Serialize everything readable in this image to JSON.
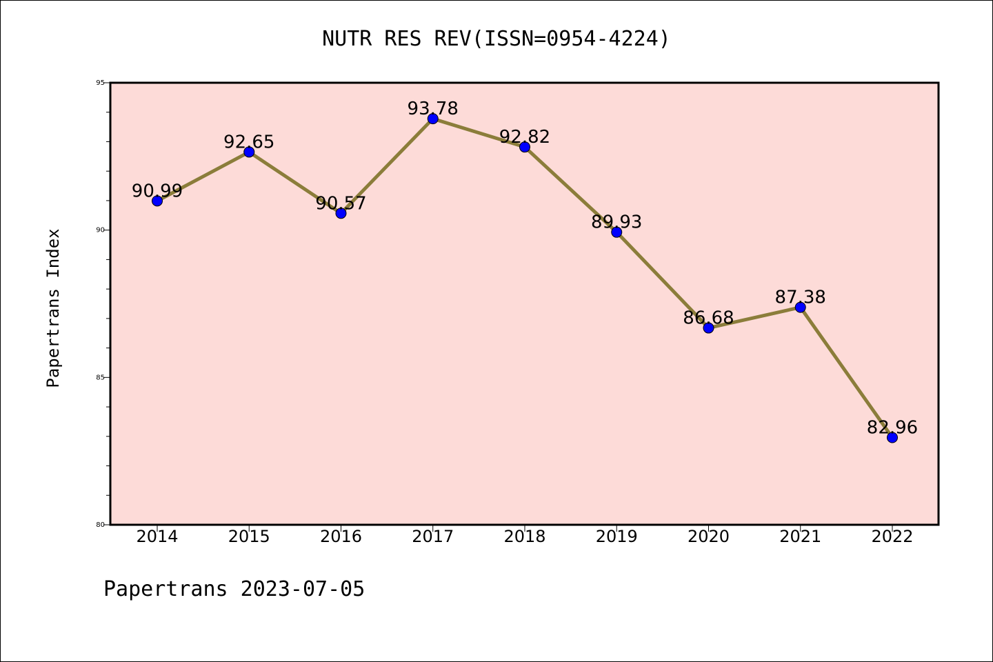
{
  "chart_data": {
    "type": "line",
    "title": "NUTR RES REV(ISSN=0954-4224)",
    "xlabel": "",
    "ylabel": "Papertrans Index",
    "footer": "Papertrans 2023-07-05",
    "categories": [
      "2014",
      "2015",
      "2016",
      "2017",
      "2018",
      "2019",
      "2020",
      "2021",
      "2022"
    ],
    "series": [
      {
        "values": [
          90.99,
          92.65,
          90.57,
          93.78,
          92.82,
          89.93,
          86.68,
          87.38,
          82.96
        ],
        "labels": [
          "90.99",
          "92.65",
          "90.57",
          "93.78",
          "92.82",
          "89.93",
          "86.68",
          "87.38",
          "82.96"
        ]
      }
    ],
    "ylim": [
      80,
      95
    ],
    "yticks": [
      "80",
      "85",
      "90",
      "95"
    ],
    "grid": false,
    "legend": "none",
    "colors": {
      "plot_background": "#fddbd8",
      "line": "#8b7d3a",
      "marker": "#0000ff",
      "axis": "#000000"
    }
  }
}
